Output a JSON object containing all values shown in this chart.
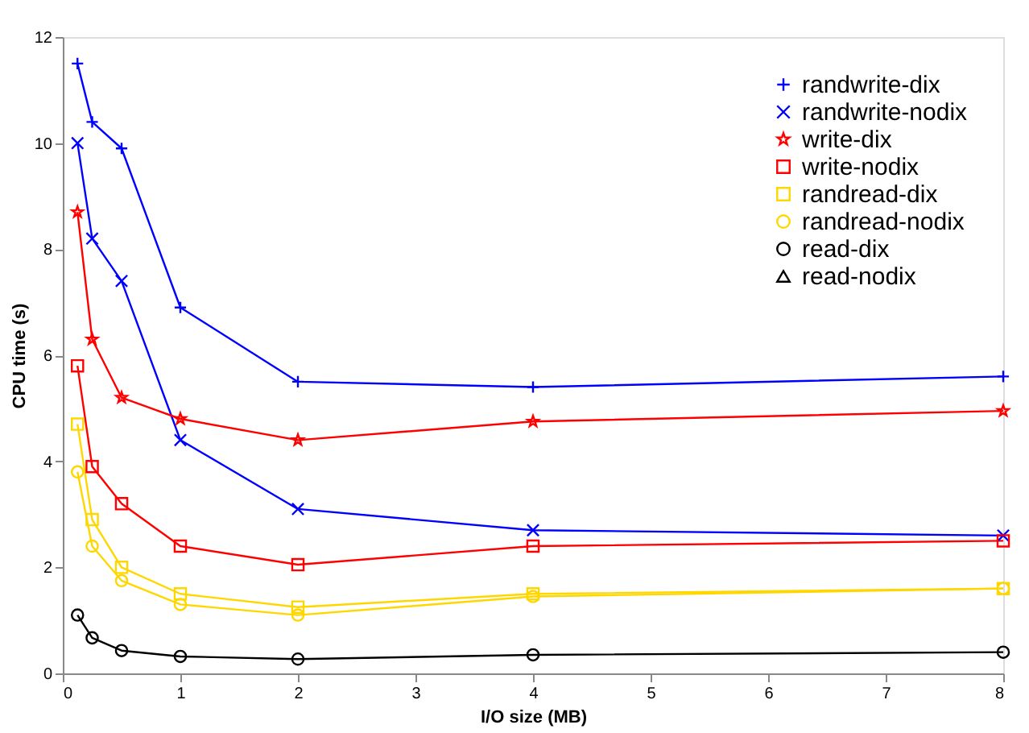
{
  "chart_data": {
    "type": "line",
    "xlabel": "I/O size (MB)",
    "ylabel": "CPU time (s)",
    "x": [
      0.125,
      0.25,
      0.5,
      1,
      2,
      4,
      8
    ],
    "xlim": [
      0,
      8
    ],
    "xticks": [
      0,
      1,
      2,
      3,
      4,
      5,
      6,
      7,
      8
    ],
    "ylim": [
      0,
      12
    ],
    "yticks": [
      0,
      2,
      4,
      6,
      8,
      10,
      12
    ],
    "grid": false,
    "legend": "top right",
    "line_style": "solid",
    "series": [
      {
        "name": "randwrite-dix",
        "color": "#0000ff",
        "marker": "cross",
        "values": [
          11.5,
          10.4,
          9.9,
          6.9,
          5.5,
          5.4,
          5.6
        ]
      },
      {
        "name": "randwrite-nodix",
        "color": "#0000ff",
        "marker": "cross",
        "values": [
          10.0,
          8.2,
          7.4,
          4.4,
          3.1,
          2.7,
          2.6
        ]
      },
      {
        "name": "write-dix",
        "color": "#ff0000",
        "marker": "star",
        "values": [
          8.7,
          6.3,
          5.2,
          4.8,
          4.4,
          4.75,
          4.95
        ]
      },
      {
        "name": "write-nodix",
        "color": "#ff0000",
        "marker": "square",
        "values": [
          5.8,
          3.9,
          3.2,
          2.4,
          2.05,
          2.4,
          2.5
        ]
      },
      {
        "name": "randread-dix",
        "color": "#ffd700",
        "marker": "square",
        "values": [
          4.7,
          2.9,
          2.0,
          1.5,
          1.25,
          1.5,
          1.6
        ]
      },
      {
        "name": "randread-nodix",
        "color": "#ffd700",
        "marker": "circle",
        "values": [
          3.8,
          2.4,
          1.75,
          1.3,
          1.1,
          1.45,
          1.6
        ]
      },
      {
        "name": "read-dix",
        "color": "#000000",
        "marker": "circle",
        "values": [
          1.1,
          0.67,
          0.43,
          0.32,
          0.27,
          0.35,
          0.4
        ]
      },
      {
        "name": "read-nodix",
        "color": "#000000",
        "marker": "triangle",
        "values": [
          null,
          null,
          null,
          null,
          null,
          null,
          null
        ]
      }
    ]
  }
}
